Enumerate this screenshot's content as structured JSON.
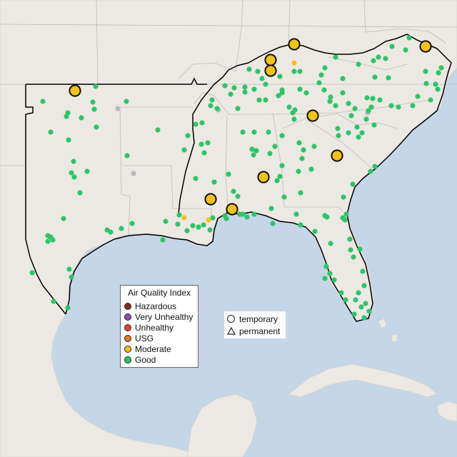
{
  "legend": {
    "title": "Air Quality Index",
    "items": [
      {
        "label": "Hazardous",
        "color": "#7e2d2d"
      },
      {
        "label": "Very Unhealthy",
        "color": "#8e4fb5"
      },
      {
        "label": "Unhealthy",
        "color": "#e0443a"
      },
      {
        "label": "USG",
        "color": "#e07b24"
      },
      {
        "label": "Moderate",
        "color": "#f2c21b"
      },
      {
        "label": "Good",
        "color": "#2ec46a"
      }
    ]
  },
  "shape_legend": {
    "temporary": "temporary",
    "permanent": "permanent"
  },
  "colors": {
    "water": "#c5d6e6",
    "land": "#ece8e3",
    "no_data": "#b9b9b9",
    "region_outline": "#000000"
  }
}
